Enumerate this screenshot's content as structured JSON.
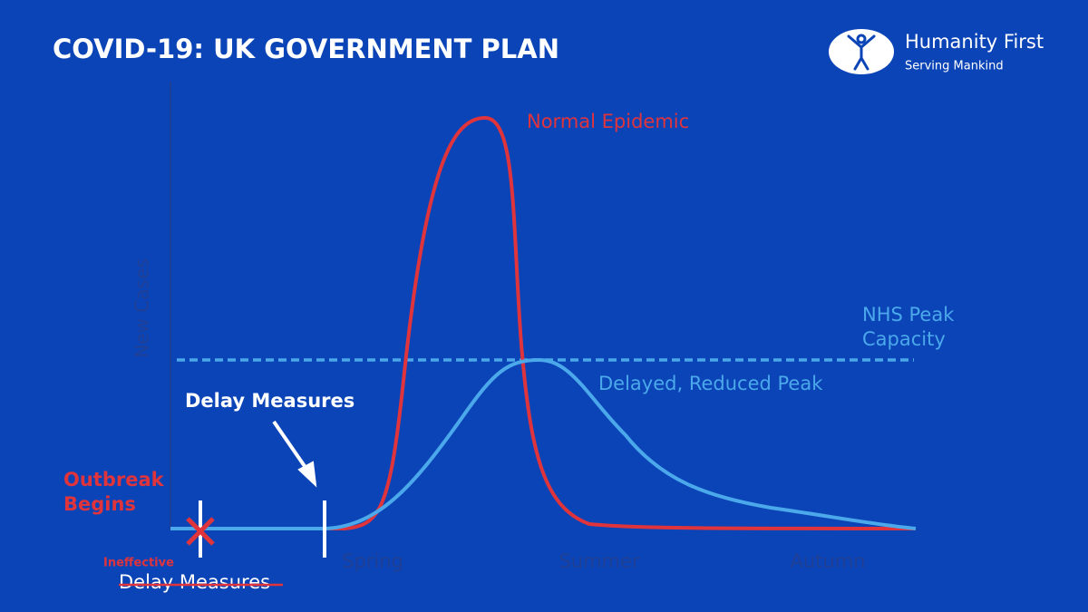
{
  "header": {
    "title": "COVID-19: UK GOVERNMENT PLAN",
    "logo_name": "Humanity First",
    "logo_tagline": "Serving Mankind"
  },
  "axes": {
    "y_label": "New Cases",
    "x_labels": [
      "Spring",
      "Summer",
      "Autumn"
    ]
  },
  "annotations": {
    "normal_epidemic": "Normal Epidemic",
    "nhs_capacity": [
      "NHS Peak",
      "Capacity"
    ],
    "delayed_peak": "Delayed, Reduced Peak",
    "delay_measures": "Delay Measures",
    "outbreak_begins": [
      "Outbreak",
      "Begins"
    ],
    "ineffective": "Ineffective",
    "ineffective_measures": "Delay Measures"
  }
}
